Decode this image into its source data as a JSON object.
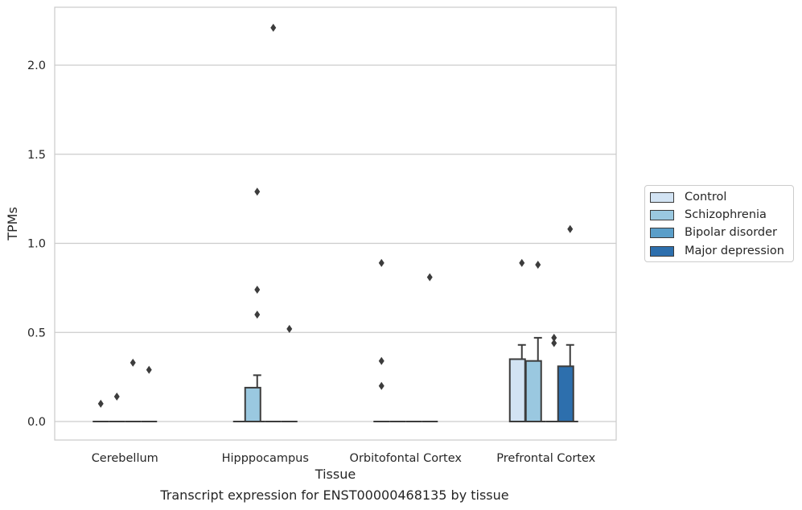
{
  "chart_data": {
    "type": "box",
    "categories": [
      "Cerebellum",
      "Hipppocampus",
      "Orbitofontal Cortex",
      "Prefrontal Cortex"
    ],
    "series": [
      {
        "name": "Control",
        "color": "#d2e3f3",
        "boxes": [
          {
            "q1": 0,
            "median": 0,
            "q3": 0,
            "whisker_low": 0,
            "whisker_high": 0,
            "outliers": [
              0.1
            ]
          },
          {
            "q1": 0,
            "median": 0,
            "q3": 0,
            "whisker_low": 0,
            "whisker_high": 0,
            "outliers": []
          },
          {
            "q1": 0,
            "median": 0,
            "q3": 0,
            "whisker_low": 0,
            "whisker_high": 0,
            "outliers": [
              0.89,
              0.34,
              0.2
            ]
          },
          {
            "q1": 0,
            "median": 0,
            "q3": 0.35,
            "whisker_low": 0,
            "whisker_high": 0.43,
            "outliers": [
              0.89
            ]
          }
        ]
      },
      {
        "name": "Schizophrenia",
        "color": "#9ac8e0",
        "boxes": [
          {
            "q1": 0,
            "median": 0,
            "q3": 0,
            "whisker_low": 0,
            "whisker_high": 0,
            "outliers": [
              0.14
            ]
          },
          {
            "q1": 0,
            "median": 0,
            "q3": 0.19,
            "whisker_low": 0,
            "whisker_high": 0.26,
            "outliers": [
              1.29,
              0.74,
              0.6
            ]
          },
          {
            "q1": 0,
            "median": 0,
            "q3": 0,
            "whisker_low": 0,
            "whisker_high": 0,
            "outliers": []
          },
          {
            "q1": 0,
            "median": 0,
            "q3": 0.34,
            "whisker_low": 0,
            "whisker_high": 0.47,
            "outliers": [
              0.88
            ]
          }
        ]
      },
      {
        "name": "Bipolar disorder",
        "color": "#5a9ec9",
        "boxes": [
          {
            "q1": 0,
            "median": 0,
            "q3": 0,
            "whisker_low": 0,
            "whisker_high": 0,
            "outliers": [
              0.33
            ]
          },
          {
            "q1": 0,
            "median": 0,
            "q3": 0,
            "whisker_low": 0,
            "whisker_high": 0,
            "outliers": [
              2.21
            ]
          },
          {
            "q1": 0,
            "median": 0,
            "q3": 0,
            "whisker_low": 0,
            "whisker_high": 0,
            "outliers": []
          },
          {
            "q1": 0,
            "median": 0,
            "q3": 0,
            "whisker_low": 0,
            "whisker_high": 0,
            "outliers": [
              0.47,
              0.44
            ]
          }
        ]
      },
      {
        "name": "Major depression",
        "color": "#2d6fad",
        "boxes": [
          {
            "q1": 0,
            "median": 0,
            "q3": 0,
            "whisker_low": 0,
            "whisker_high": 0,
            "outliers": [
              0.29
            ]
          },
          {
            "q1": 0,
            "median": 0,
            "q3": 0,
            "whisker_low": 0,
            "whisker_high": 0,
            "outliers": [
              0.52
            ]
          },
          {
            "q1": 0,
            "median": 0,
            "q3": 0,
            "whisker_low": 0,
            "whisker_high": 0,
            "outliers": [
              0.81
            ]
          },
          {
            "q1": 0,
            "median": 0,
            "q3": 0.31,
            "whisker_low": 0,
            "whisker_high": 0.43,
            "outliers": [
              1.08
            ]
          }
        ]
      }
    ],
    "xlabel": "Tissue",
    "ylabel": "TPMs",
    "ylim": [
      -0.11,
      2.33
    ],
    "yticks": [
      "0.0",
      "0.5",
      "1.0",
      "1.5",
      "2.0"
    ],
    "grid": true,
    "legend_placement": "right",
    "caption": "Transcript expression for ENST00000468135 by tissue"
  }
}
